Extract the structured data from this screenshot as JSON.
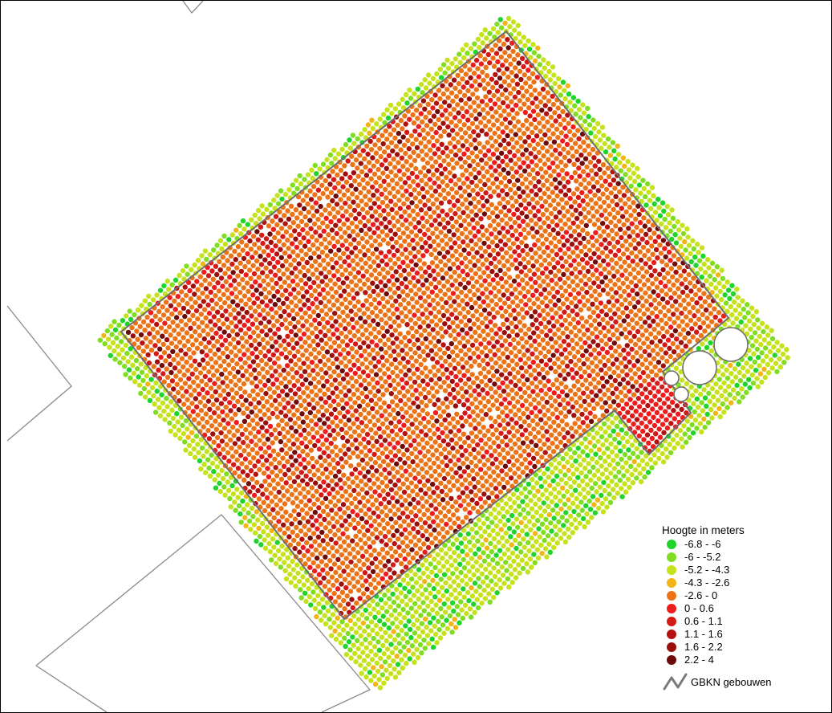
{
  "legend": {
    "title": "Hoogte in meters",
    "classes": [
      {
        "label": "-6.8 - -6",
        "color": "#1fd42a"
      },
      {
        "label": "-6 - -5.2",
        "color": "#7fdd22"
      },
      {
        "label": "-5.2 - -4.3",
        "color": "#c5e21c"
      },
      {
        "label": "-4.3 - -2.6",
        "color": "#f2b417"
      },
      {
        "label": "-2.6 - 0",
        "color": "#ec7417"
      },
      {
        "label": "0 - 0.6",
        "color": "#ee1c1c"
      },
      {
        "label": "0.6 - 1.1",
        "color": "#d41a16"
      },
      {
        "label": "1.1 - 1.6",
        "color": "#b5120f"
      },
      {
        "label": "1.6 - 2.2",
        "color": "#9a0e0c"
      },
      {
        "label": "2.2 - 4",
        "color": "#6e0a09"
      }
    ],
    "buildings_label": "GBKN gebouwen",
    "buildings_color": "#7a7a7a"
  }
}
